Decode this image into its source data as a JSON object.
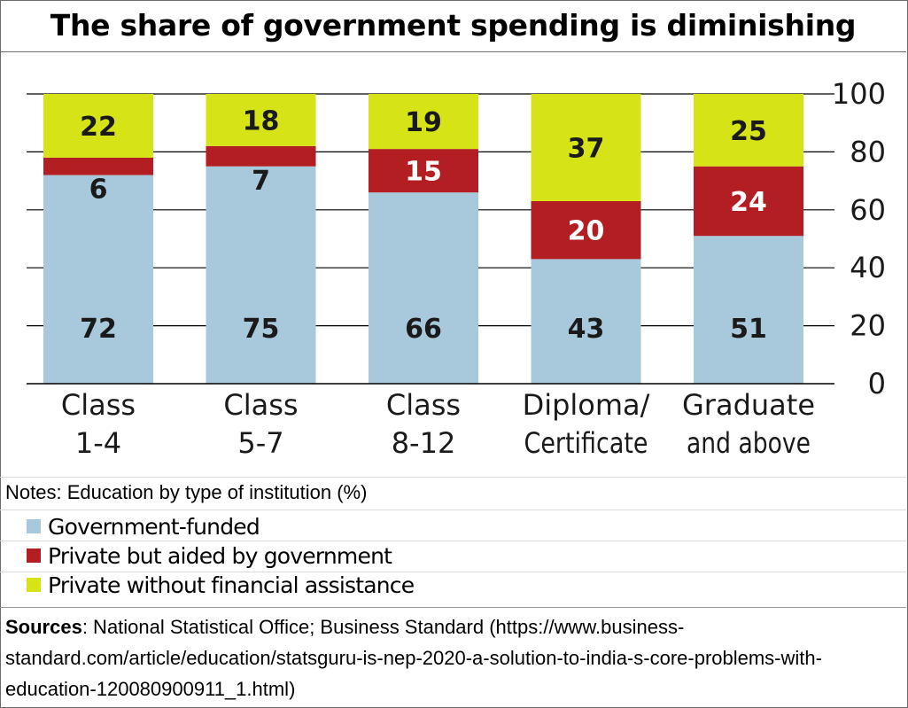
{
  "title": "The share of government spending is diminishing",
  "chart_data": {
    "type": "bar",
    "stacked": true,
    "categories": [
      [
        "Class",
        "1-4"
      ],
      [
        "Class",
        "5-7"
      ],
      [
        "Class",
        "8-12"
      ],
      [
        "Diploma/",
        "Certificate"
      ],
      [
        "Graduate",
        "and above"
      ]
    ],
    "series": [
      {
        "name": "Government-funded",
        "color": "#a8c8dc",
        "values": [
          72,
          75,
          66,
          43,
          51
        ]
      },
      {
        "name": "Private but aided by government",
        "color": "#b21e22",
        "values": [
          6,
          7,
          15,
          20,
          24
        ]
      },
      {
        "name": "Private without financial assistance",
        "color": "#d6e417",
        "values": [
          22,
          18,
          19,
          37,
          25
        ]
      }
    ],
    "yticks": [
      0,
      20,
      40,
      60,
      80,
      100
    ],
    "ylim": [
      0,
      100
    ],
    "axis_position": "right",
    "grid": true
  },
  "notes": "Notes: Education by type of institution (%)",
  "sources": {
    "label": "Sources",
    "text": ": National Statistical Office; Business Standard (https://www.business-standard.com/article/education/statsguru-is-nep-2020-a-solution-to-india-s-core-problems-with-education-120080900911_1.html)"
  }
}
